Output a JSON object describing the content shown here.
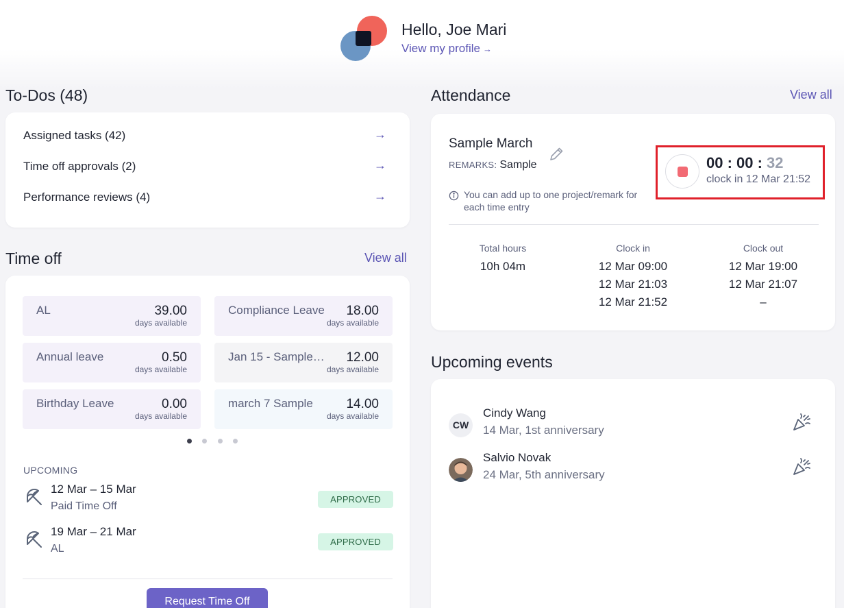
{
  "greeting": {
    "hello": "Hello, Joe Mari",
    "profile_link": "View my profile",
    "profile_arrow": "→"
  },
  "todos": {
    "title": "To-Dos (48)",
    "items": [
      {
        "label": "Assigned tasks (42)",
        "arrow": "→"
      },
      {
        "label": "Time off approvals (2)",
        "arrow": "→"
      },
      {
        "label": "Performance reviews (4)",
        "arrow": "→"
      }
    ]
  },
  "time_off": {
    "title": "Time off",
    "view_all": "View all",
    "balances": [
      {
        "name": "AL",
        "value": "39.00",
        "sub": "days available",
        "color": "#f4f1fa"
      },
      {
        "name": "Compliance Leave",
        "value": "18.00",
        "sub": "days available",
        "color": "#f4f1fa"
      },
      {
        "name": "Annual leave",
        "value": "0.50",
        "sub": "days available",
        "color": "#f4f1fa"
      },
      {
        "name": "Jan 15 - Sample …",
        "value": "12.00",
        "sub": "days available",
        "color": "#f4f4f6"
      },
      {
        "name": "Birthday Leave",
        "value": "0.00",
        "sub": "days available",
        "color": "#f4f1fa"
      },
      {
        "name": "march 7 Sample",
        "value": "14.00",
        "sub": "days available",
        "color": "#f3f8fc"
      }
    ],
    "upcoming_label": "UPCOMING",
    "upcoming": [
      {
        "dates": "12 Mar – 15 Mar",
        "type": "Paid Time Off",
        "status": "APPROVED",
        "icon": "umbrella-icon"
      },
      {
        "dates": "19 Mar – 21 Mar",
        "type": "AL",
        "status": "APPROVED",
        "icon": "umbrella-icon"
      }
    ],
    "request_button": "Request Time Off"
  },
  "attendance": {
    "title": "Attendance",
    "view_all": "View all",
    "entry_title": "Sample March",
    "remarks_key": "REMARKS:",
    "remarks_value": "Sample",
    "info_note": "You can add up to one project/remark for each time entry",
    "timer_hm": "00 : 00 : ",
    "timer_sec": "32",
    "clock_in_note": "clock in 12 Mar 21:52",
    "columns": [
      {
        "header": "Total hours",
        "values": [
          "10h 04m"
        ]
      },
      {
        "header": "Clock in",
        "values": [
          "12 Mar 09:00",
          "12 Mar 21:03",
          "12 Mar 21:52"
        ]
      },
      {
        "header": "Clock out",
        "values": [
          "12 Mar 19:00",
          "12 Mar 21:07",
          "–"
        ]
      }
    ],
    "highlight_color": "#e0202a"
  },
  "events": {
    "title": "Upcoming events",
    "items": [
      {
        "initials": "CW",
        "name": "Cindy Wang",
        "desc": "14 Mar, 1st anniversary",
        "icon": "party-popper-icon"
      },
      {
        "initials": "",
        "name": "Salvio Novak",
        "desc": "24 Mar, 5th anniversary",
        "icon": "party-popper-icon"
      }
    ]
  },
  "colors": {
    "accent": "#5b55b4",
    "button": "#6c63c7",
    "approved_bg": "#d6f5e6",
    "approved_text": "#2d6a47"
  }
}
